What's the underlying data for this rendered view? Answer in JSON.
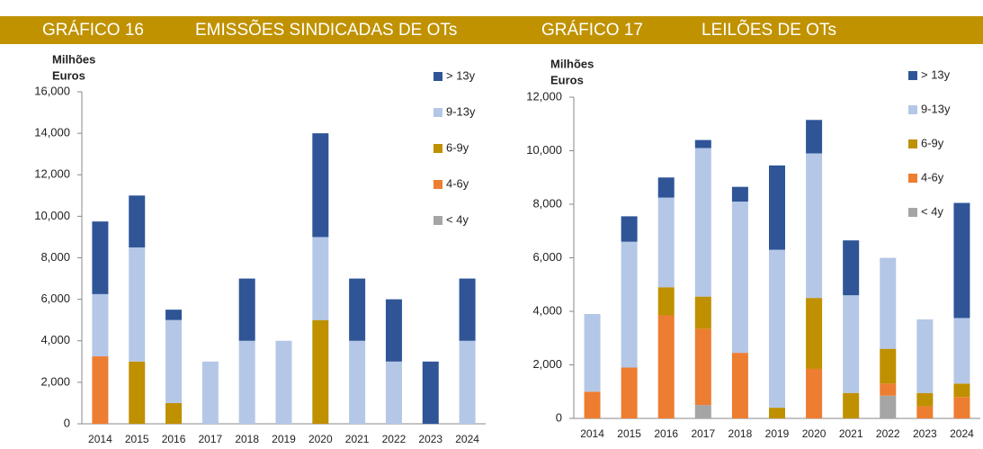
{
  "chart_data": [
    {
      "type": "bar",
      "stacked": true,
      "label": "GRÁFICO 16",
      "title": "EMISSÕES SINDICADAS DE OTs",
      "ylabel": [
        "Milhões",
        "Euros"
      ],
      "categories": [
        "2014",
        "2015",
        "2016",
        "2017",
        "2018",
        "2019",
        "2020",
        "2021",
        "2022",
        "2023",
        "2024"
      ],
      "series": [
        {
          "name": "< 4y",
          "color": "#a5a5a5",
          "values": [
            0,
            0,
            0,
            0,
            0,
            0,
            0,
            0,
            0,
            0,
            0
          ]
        },
        {
          "name": "4-6y",
          "color": "#ed7d31",
          "values": [
            3250,
            0,
            0,
            0,
            0,
            0,
            0,
            0,
            0,
            0,
            0
          ]
        },
        {
          "name": "6-9y",
          "color": "#bf9000",
          "values": [
            0,
            3000,
            1000,
            0,
            0,
            0,
            5000,
            0,
            0,
            0,
            0
          ]
        },
        {
          "name": "9-13y",
          "color": "#b4c7e7",
          "values": [
            3000,
            5500,
            4000,
            3000,
            4000,
            4000,
            4000,
            4000,
            3000,
            0,
            4000
          ]
        },
        {
          "name": "> 13y",
          "color": "#2f5597",
          "values": [
            3500,
            2500,
            500,
            0,
            3000,
            0,
            5000,
            3000,
            3000,
            3000,
            3000
          ]
        }
      ],
      "ylim": [
        0,
        16000
      ],
      "yticks": [
        0,
        {
          "value": 2000,
          "label": "2,000"
        },
        {
          "value": 4000,
          "label": "4,000"
        },
        {
          "value": 6000,
          "label": "6,000"
        },
        {
          "value": 8000,
          "label": "8,000"
        },
        {
          "value": 10000,
          "label": "10,000"
        },
        {
          "value": 12000,
          "label": "12,000"
        },
        {
          "value": 14000,
          "label": "14,000"
        },
        {
          "value": 16000,
          "label": "16,000"
        }
      ],
      "grid": false,
      "legend": "right"
    },
    {
      "type": "bar",
      "stacked": true,
      "label": "GRÁFICO 17",
      "title": "LEILÕES DE OTs",
      "ylabel": [
        "Milhões",
        "Euros"
      ],
      "categories": [
        "2014",
        "2015",
        "2016",
        "2017",
        "2018",
        "2019",
        "2020",
        "2021",
        "2022",
        "2023",
        "2024"
      ],
      "series": [
        {
          "name": "< 4y",
          "color": "#a5a5a5",
          "values": [
            0,
            0,
            0,
            500,
            0,
            0,
            0,
            0,
            850,
            0,
            0
          ]
        },
        {
          "name": "4-6y",
          "color": "#ed7d31",
          "values": [
            1000,
            1900,
            3850,
            2850,
            2450,
            0,
            1850,
            0,
            450,
            450,
            800
          ]
        },
        {
          "name": "6-9y",
          "color": "#bf9000",
          "values": [
            0,
            0,
            1050,
            1200,
            0,
            400,
            2650,
            950,
            1300,
            500,
            500
          ]
        },
        {
          "name": "9-13y",
          "color": "#b4c7e7",
          "values": [
            2900,
            4700,
            3350,
            5550,
            5650,
            5900,
            5400,
            3650,
            3400,
            2750,
            2450
          ]
        },
        {
          "name": "> 13y",
          "color": "#2f5597",
          "values": [
            0,
            950,
            750,
            300,
            550,
            3150,
            1250,
            2050,
            0,
            0,
            4300
          ]
        }
      ],
      "ylim": [
        0,
        12000
      ],
      "yticks": [
        0,
        {
          "value": 2000,
          "label": "2,000"
        },
        {
          "value": 4000,
          "label": "4,000"
        },
        {
          "value": 6000,
          "label": "6,000"
        },
        {
          "value": 8000,
          "label": "8,000"
        },
        {
          "value": 10000,
          "label": "10,000"
        },
        {
          "value": 12000,
          "label": "12,000"
        }
      ],
      "grid": false,
      "legend": "right"
    }
  ]
}
